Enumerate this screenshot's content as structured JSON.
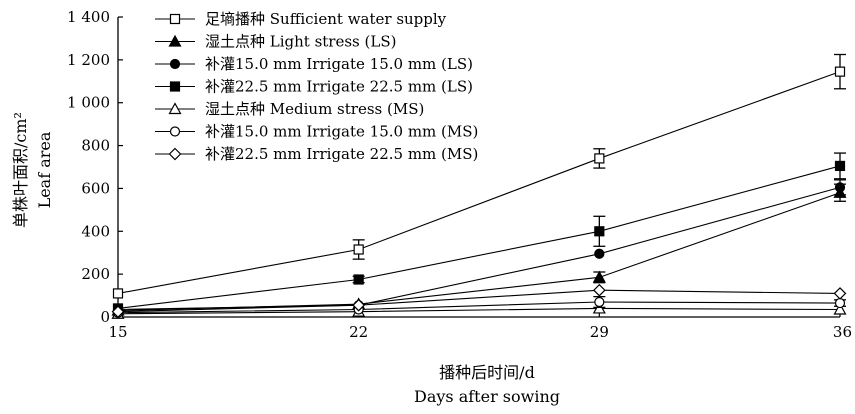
{
  "chart_data": {
    "type": "line",
    "title": "",
    "xlabel": "播种后时间/d",
    "xlabel_en": "Days after sowing",
    "ylabel": "单株叶面积/cm²",
    "ylabel_en": "Leaf area",
    "x": [
      15,
      22,
      29,
      36
    ],
    "xlim": [
      15,
      36
    ],
    "ylim": [
      0,
      1400
    ],
    "yticks": [
      0,
      200,
      400,
      600,
      800,
      1000,
      1200,
      1400
    ],
    "ytick_labels": [
      "0",
      "200",
      "400",
      "600",
      "800",
      "1 000",
      "1 200",
      "1 400"
    ],
    "grid": false,
    "legend_position": "top-left",
    "series": [
      {
        "name": "足墒播种 Sufficient water supply",
        "marker": "open-square",
        "values": [
          110,
          315,
          740,
          1145
        ],
        "errors": [
          0,
          45,
          45,
          80
        ]
      },
      {
        "name": "湿土点种 Light stress (LS)",
        "marker": "filled-triangle",
        "values": [
          30,
          60,
          185,
          580
        ],
        "errors": [
          0,
          0,
          25,
          40
        ]
      },
      {
        "name": "补灌15.0 mm Irrigate 15.0 mm (LS)",
        "marker": "filled-circle",
        "values": [
          35,
          55,
          295,
          605
        ],
        "errors": [
          0,
          0,
          0,
          35
        ]
      },
      {
        "name": "补灌22.5 mm Irrigate 22.5 mm (LS)",
        "marker": "filled-square",
        "values": [
          40,
          175,
          400,
          705
        ],
        "errors": [
          0,
          15,
          70,
          60
        ]
      },
      {
        "name": "湿土点种 Medium stress (MS)",
        "marker": "open-triangle",
        "values": [
          15,
          25,
          40,
          35
        ],
        "errors": [
          0,
          0,
          0,
          0
        ]
      },
      {
        "name": "补灌15.0 mm Irrigate 15.0 mm (MS)",
        "marker": "open-circle",
        "values": [
          20,
          35,
          70,
          65
        ],
        "errors": [
          0,
          0,
          25,
          15
        ]
      },
      {
        "name": "补灌22.5 mm Irrigate 22.5 mm (MS)",
        "marker": "open-diamond",
        "values": [
          25,
          55,
          125,
          110
        ],
        "errors": [
          0,
          0,
          0,
          0
        ]
      }
    ]
  }
}
